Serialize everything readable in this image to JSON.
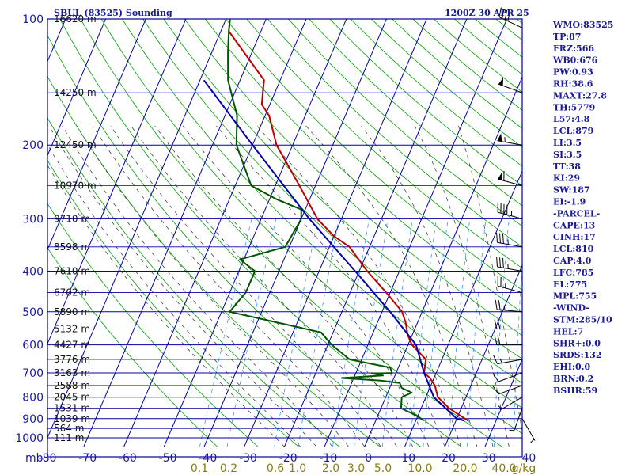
{
  "chart_data": {
    "type": "skew-t",
    "title": "SBUL (83525) Sounding",
    "timestamp": "1200Z 30 APR 25",
    "pressure_axis": {
      "unit_label": "mb",
      "ticks": [
        100,
        200,
        300,
        400,
        500,
        600,
        700,
        800,
        900,
        1000
      ],
      "range": [
        100,
        1000
      ],
      "scale": "log"
    },
    "temperature_axis": {
      "ticks": [
        -80,
        -70,
        -60,
        -50,
        -40,
        -30,
        -20,
        -10,
        0,
        10,
        20,
        30,
        40
      ],
      "tick_labels": [
        "-80",
        "-70",
        "-60",
        "-50",
        "-40",
        "-30",
        "-20",
        "-10",
        "0",
        "10",
        "20",
        "30",
        "40"
      ],
      "range": [
        -80,
        40
      ]
    },
    "mixing_ratio_labels": [
      "0.1",
      "0.2",
      "0.6",
      "1.0",
      "2.0",
      "3.0",
      "5.0",
      "10.0",
      "20.0",
      "40.0",
      "g/kg"
    ],
    "height_labels": [
      {
        "text": "16620 m",
        "p": 100
      },
      {
        "text": "14250 m",
        "p": 150
      },
      {
        "text": "12450 m",
        "p": 200
      },
      {
        "text": "10970 m",
        "p": 250
      },
      {
        "text": "9710 m",
        "p": 300
      },
      {
        "text": "8598 m",
        "p": 350
      },
      {
        "text": "7610 m",
        "p": 400
      },
      {
        "text": "6702 m",
        "p": 450
      },
      {
        "text": "5890 m",
        "p": 500
      },
      {
        "text": "5132 m",
        "p": 550
      },
      {
        "text": "4427 m",
        "p": 600
      },
      {
        "text": "3776 m",
        "p": 650
      },
      {
        "text": "3163 m",
        "p": 700
      },
      {
        "text": "2588 m",
        "p": 750
      },
      {
        "text": "2045 m",
        "p": 800
      },
      {
        "text": "1531 m",
        "p": 850
      },
      {
        "text": "1039 m",
        "p": 900
      },
      {
        "text": "564 m",
        "p": 950
      },
      {
        "text": "111 m",
        "p": 1000
      }
    ],
    "series": [
      {
        "name": "temperature",
        "color": "#c00000",
        "points": [
          [
            100,
            -79
          ],
          [
            107,
            -78
          ],
          [
            140,
            -64
          ],
          [
            150,
            -63
          ],
          [
            160,
            -62
          ],
          [
            170,
            -59
          ],
          [
            200,
            -54
          ],
          [
            250,
            -44
          ],
          [
            300,
            -36
          ],
          [
            330,
            -30
          ],
          [
            350,
            -25
          ],
          [
            400,
            -18
          ],
          [
            450,
            -11
          ],
          [
            500,
            -5
          ],
          [
            530,
            -3
          ],
          [
            550,
            -2
          ],
          [
            570,
            -1
          ],
          [
            600,
            1
          ],
          [
            650,
            6
          ],
          [
            700,
            7
          ],
          [
            720,
            9
          ],
          [
            750,
            11
          ],
          [
            800,
            13
          ],
          [
            850,
            17
          ],
          [
            880,
            20
          ],
          [
            910,
            23
          ]
        ]
      },
      {
        "name": "dewpoint",
        "color": "#005500",
        "points": [
          [
            100,
            -79
          ],
          [
            107,
            -78
          ],
          [
            120,
            -76
          ],
          [
            140,
            -73
          ],
          [
            170,
            -67
          ],
          [
            200,
            -64
          ],
          [
            230,
            -59
          ],
          [
            250,
            -56
          ],
          [
            270,
            -48
          ],
          [
            285,
            -41
          ],
          [
            300,
            -40
          ],
          [
            350,
            -41
          ],
          [
            375,
            -51
          ],
          [
            400,
            -46
          ],
          [
            450,
            -46
          ],
          [
            500,
            -48
          ],
          [
            560,
            -23
          ],
          [
            600,
            -19
          ],
          [
            650,
            -13
          ],
          [
            680,
            -2
          ],
          [
            700,
            -1
          ],
          [
            702,
            -6
          ],
          [
            710,
            -3
          ],
          [
            720,
            -13
          ],
          [
            730,
            -3
          ],
          [
            740,
            2
          ],
          [
            760,
            3
          ],
          [
            780,
            6
          ],
          [
            800,
            4
          ],
          [
            850,
            5
          ],
          [
            880,
            9
          ],
          [
            910,
            12
          ]
        ]
      },
      {
        "name": "parcel",
        "color": "#0000b0",
        "points": [
          [
            140,
            -79
          ],
          [
            200,
            -60
          ],
          [
            300,
            -38
          ],
          [
            400,
            -21
          ],
          [
            500,
            -8
          ],
          [
            600,
            2
          ],
          [
            700,
            7
          ],
          [
            800,
            12
          ],
          [
            900,
            20
          ],
          [
            910,
            22
          ]
        ]
      }
    ],
    "wind_barbs": [
      {
        "p": 105,
        "dir": 295,
        "kt": 40
      },
      {
        "p": 150,
        "dir": 290,
        "kt": 50
      },
      {
        "p": 200,
        "dir": 280,
        "kt": 55
      },
      {
        "p": 250,
        "dir": 285,
        "kt": 60
      },
      {
        "p": 300,
        "dir": 285,
        "kt": 45
      },
      {
        "p": 350,
        "dir": 280,
        "kt": 35
      },
      {
        "p": 400,
        "dir": 280,
        "kt": 35
      },
      {
        "p": 450,
        "dir": 285,
        "kt": 25
      },
      {
        "p": 500,
        "dir": 275,
        "kt": 25
      },
      {
        "p": 550,
        "dir": 270,
        "kt": 20
      },
      {
        "p": 600,
        "dir": 270,
        "kt": 20
      },
      {
        "p": 650,
        "dir": 260,
        "kt": 15
      },
      {
        "p": 700,
        "dir": 250,
        "kt": 10
      },
      {
        "p": 750,
        "dir": 250,
        "kt": 10
      },
      {
        "p": 800,
        "dir": 240,
        "kt": 5
      },
      {
        "p": 850,
        "dir": 200,
        "kt": 5
      },
      {
        "p": 900,
        "dir": 150,
        "kt": 5
      }
    ],
    "indices": [
      "WMO:83525",
      "TP:87",
      "FRZ:566",
      "WB0:676",
      "PW:0.93",
      "RH:38.6",
      "MAXT:27.8",
      "TH:5779",
      "L57:4.8",
      "LCL:879",
      "LI:3.5",
      "SI:3.5",
      "TT:38",
      "KI:29",
      "SW:187",
      "EI:-1.9",
      "-PARCEL-",
      "CAPE:13",
      "CINH:17",
      "LCL:810",
      "CAP:4.0",
      "LFC:785",
      "EL:775",
      "MPL:755",
      "-WIND-",
      "STM:285/10",
      "HEL:7",
      "SHR+:0.0",
      "SRDS:132",
      "EHI:0.0",
      "BRN:0.2",
      "BSHR:59"
    ],
    "colors": {
      "frame": "#0000a0",
      "isotherm": "#0000a0",
      "dry_adiabat": "#00a000",
      "moist_adiabat": "#444444",
      "mixing_ratio": "#3399ff",
      "text": "#1a1a99"
    }
  }
}
